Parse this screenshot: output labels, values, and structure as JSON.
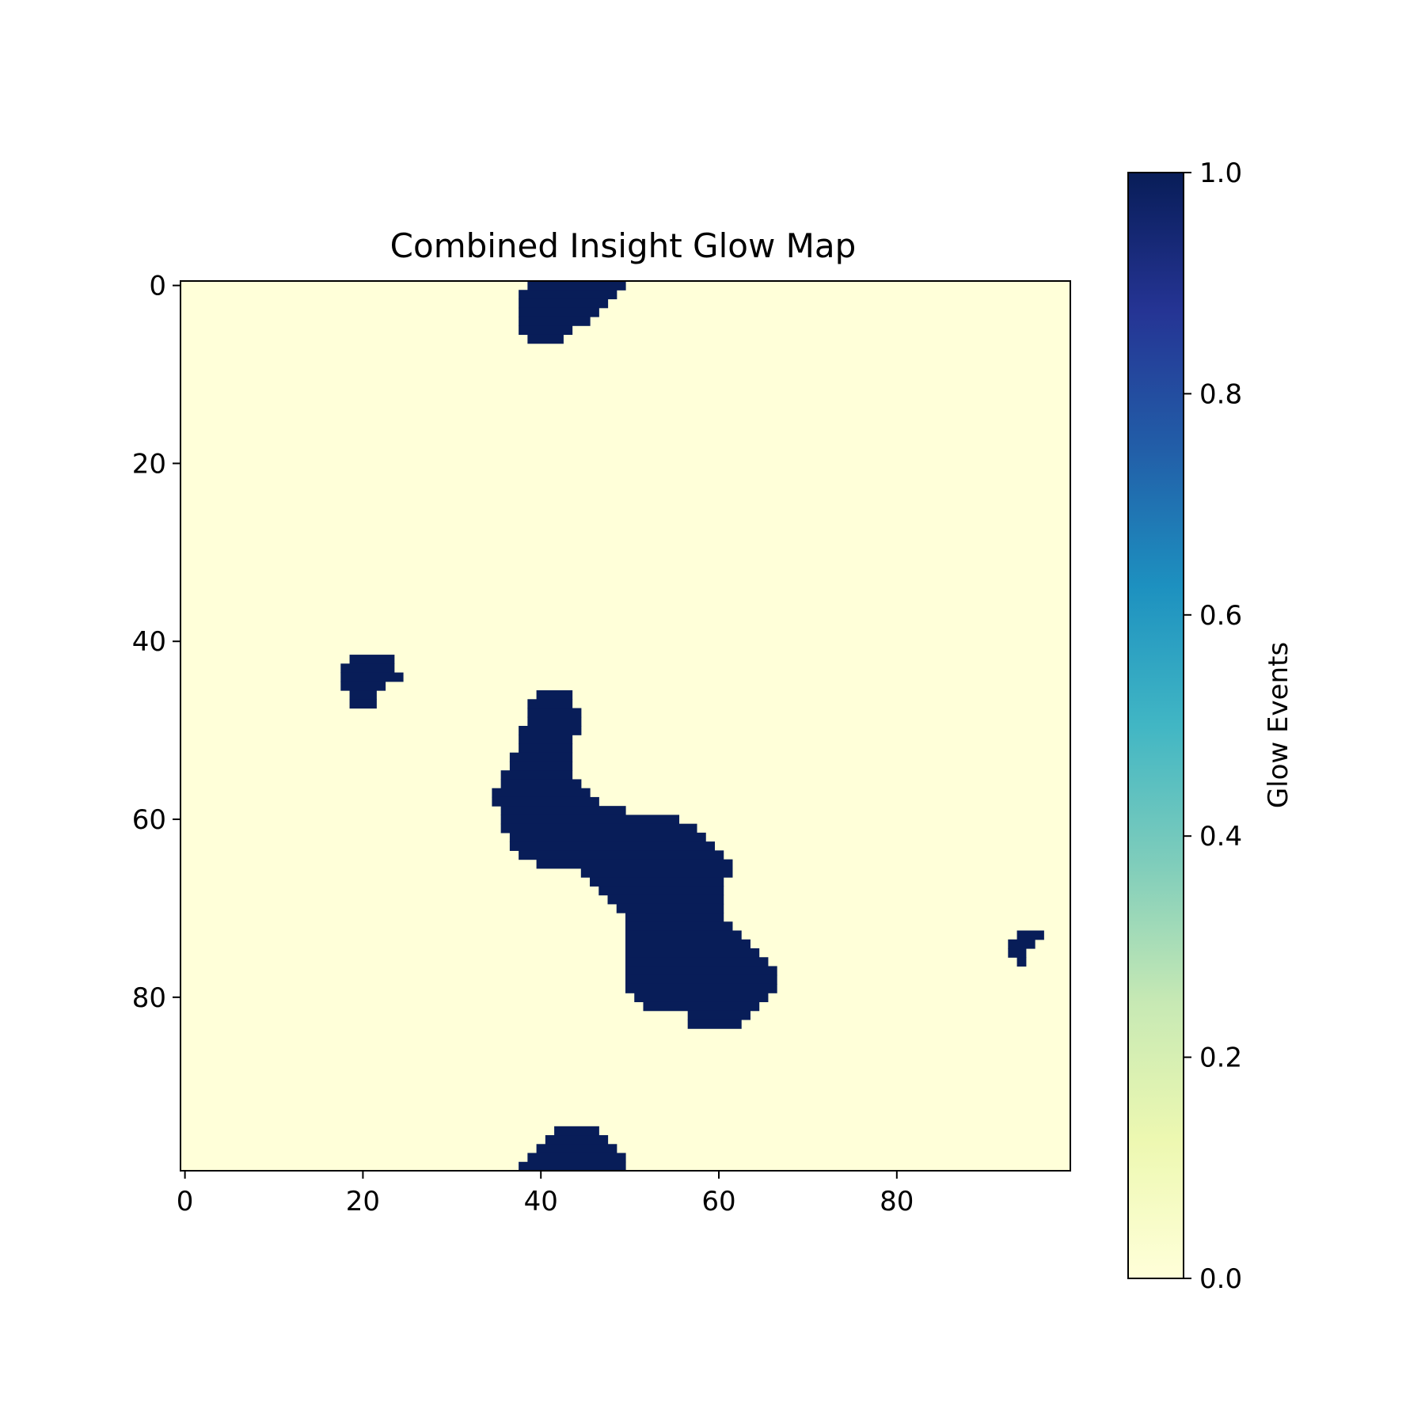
{
  "chart_data": {
    "type": "heatmap",
    "title": "Combined Insight Glow Map",
    "colormap": "YlGnBu",
    "colors": {
      "low": "#ffffd9",
      "high": "#081d58"
    },
    "grid_size": 100,
    "x_ticks": [
      0,
      20,
      40,
      60,
      80
    ],
    "y_ticks": [
      0,
      20,
      40,
      60,
      80
    ],
    "grid": false,
    "colorbar": {
      "label": "Glow Events",
      "ticks": [
        "0.0",
        "0.2",
        "0.4",
        "0.6",
        "0.8",
        "1.0"
      ],
      "range": [
        0.0,
        1.0
      ],
      "placement": "right"
    },
    "cells_description": "cells with value 1 given as per-row column runs [row, start_col, end_col_inclusive]; all other cells are 0",
    "runs": [
      [
        0,
        39,
        49
      ],
      [
        1,
        38,
        48
      ],
      [
        2,
        38,
        47
      ],
      [
        3,
        38,
        46
      ],
      [
        4,
        38,
        45
      ],
      [
        5,
        38,
        43
      ],
      [
        6,
        39,
        42
      ],
      [
        42,
        19,
        23
      ],
      [
        43,
        18,
        23
      ],
      [
        44,
        18,
        24
      ],
      [
        45,
        18,
        22
      ],
      [
        46,
        19,
        21
      ],
      [
        47,
        19,
        21
      ],
      [
        46,
        40,
        43
      ],
      [
        47,
        39,
        43
      ],
      [
        48,
        39,
        44
      ],
      [
        49,
        39,
        44
      ],
      [
        50,
        38,
        44
      ],
      [
        51,
        38,
        43
      ],
      [
        52,
        38,
        43
      ],
      [
        53,
        37,
        43
      ],
      [
        54,
        37,
        43
      ],
      [
        55,
        36,
        43
      ],
      [
        56,
        36,
        44
      ],
      [
        57,
        35,
        45
      ],
      [
        58,
        35,
        46
      ],
      [
        59,
        36,
        49
      ],
      [
        60,
        36,
        55
      ],
      [
        61,
        36,
        57
      ],
      [
        62,
        37,
        58
      ],
      [
        63,
        37,
        59
      ],
      [
        64,
        38,
        60
      ],
      [
        65,
        40,
        61
      ],
      [
        66,
        45,
        61
      ],
      [
        67,
        46,
        60
      ],
      [
        68,
        47,
        60
      ],
      [
        69,
        48,
        60
      ],
      [
        70,
        49,
        60
      ],
      [
        71,
        50,
        60
      ],
      [
        72,
        50,
        61
      ],
      [
        73,
        50,
        62
      ],
      [
        74,
        50,
        63
      ],
      [
        75,
        50,
        64
      ],
      [
        76,
        50,
        65
      ],
      [
        77,
        50,
        66
      ],
      [
        78,
        50,
        66
      ],
      [
        79,
        50,
        66
      ],
      [
        80,
        51,
        65
      ],
      [
        81,
        52,
        64
      ],
      [
        82,
        57,
        63
      ],
      [
        83,
        57,
        62
      ],
      [
        73,
        94,
        96
      ],
      [
        74,
        93,
        95
      ],
      [
        75,
        93,
        94
      ],
      [
        76,
        94,
        94
      ],
      [
        95,
        42,
        46
      ],
      [
        96,
        41,
        47
      ],
      [
        97,
        40,
        48
      ],
      [
        98,
        39,
        49
      ],
      [
        99,
        38,
        49
      ]
    ]
  }
}
